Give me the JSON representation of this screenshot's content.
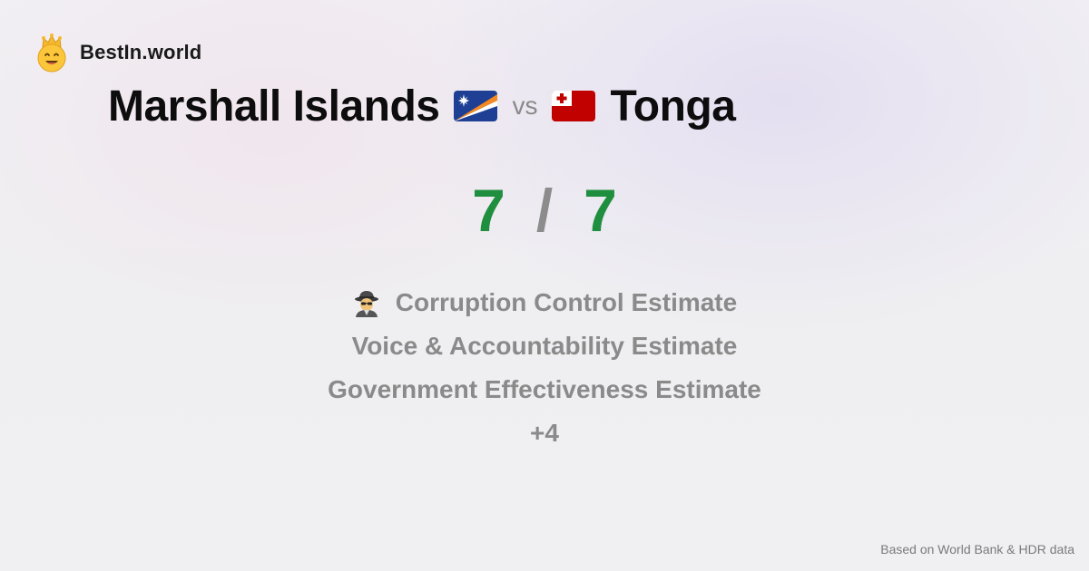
{
  "brand": {
    "name": "BestIn.world",
    "logo_icon": "crown-smiley-icon"
  },
  "comparison": {
    "left_country": "Marshall Islands",
    "left_flag_icon": "marshall-islands-flag-icon",
    "vs_label": "vs",
    "right_country": "Tonga",
    "right_flag_icon": "tonga-flag-icon"
  },
  "score": {
    "left": "7",
    "separator": "/",
    "right": "7",
    "color": "#1f8f3f"
  },
  "metrics": {
    "items": [
      {
        "label": "Corruption Control Estimate",
        "icon": "spy-icon"
      },
      {
        "label": "Voice & Accountability Estimate"
      },
      {
        "label": "Government Effectiveness Estimate"
      }
    ],
    "more_label": "+4"
  },
  "footer": {
    "source_note": "Based on World Bank & HDR data"
  }
}
